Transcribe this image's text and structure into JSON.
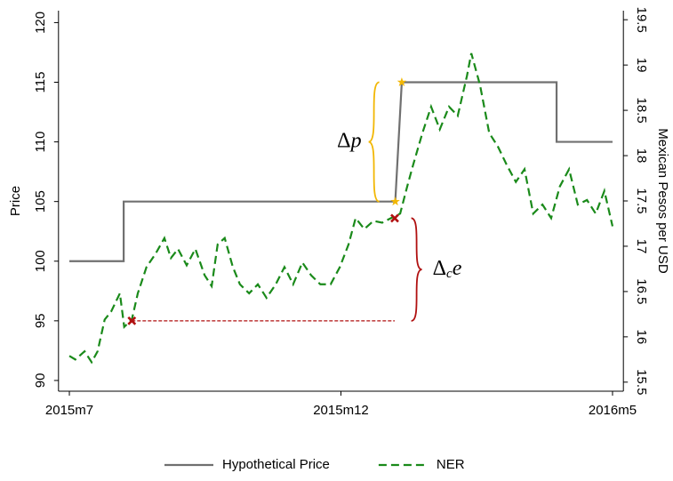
{
  "chart_data": {
    "type": "line",
    "xlim": [
      -0.2,
      10.2
    ],
    "xticks": [
      {
        "value": 0,
        "label": "2015m7"
      },
      {
        "value": 5,
        "label": "2015m12"
      },
      {
        "value": 10,
        "label": "2016m5"
      }
    ],
    "ylim": [
      89.1,
      121
    ],
    "yticks": [
      90,
      95,
      100,
      105,
      110,
      115,
      120
    ],
    "y2lim": [
      15.4,
      19.6
    ],
    "y2ticks": [
      15.5,
      16,
      16.5,
      17,
      17.5,
      18,
      18.5,
      19,
      19.5
    ],
    "ylabel": "Price",
    "y2label": "Mexican Pesos per USD",
    "grid": false,
    "legend": "bottom",
    "series": [
      {
        "name": "Hypothetical Price",
        "color": "#707070",
        "dash": false,
        "x": [
          0,
          1,
          1,
          6,
          6.12,
          8.97,
          8.97,
          10
        ],
        "values": [
          100,
          100,
          105,
          105,
          115,
          115,
          110,
          110
        ]
      },
      {
        "name": "NER",
        "color": "#1a8a1a",
        "dash": true,
        "axis": "y2",
        "x": [
          0,
          0.11,
          0.28,
          0.41,
          0.52,
          0.65,
          0.77,
          0.93,
          1.01,
          1.15,
          1.26,
          1.42,
          1.59,
          1.75,
          1.87,
          2.0,
          2.16,
          2.32,
          2.49,
          2.62,
          2.73,
          2.86,
          3.01,
          3.14,
          3.31,
          3.47,
          3.63,
          3.8,
          3.96,
          4.12,
          4.29,
          4.45,
          4.62,
          4.81,
          4.98,
          5.14,
          5.27,
          5.43,
          5.6,
          5.76,
          5.92,
          6.09,
          6.22,
          6.33,
          6.5,
          6.66,
          6.82,
          6.99,
          7.15,
          7.32,
          7.4,
          7.56,
          7.73,
          7.89,
          8.05,
          8.22,
          8.38,
          8.54,
          8.71,
          8.87,
          9.03,
          9.2,
          9.36,
          9.53,
          9.69,
          9.85,
          10.0
        ],
        "values": [
          15.79,
          15.75,
          15.84,
          15.72,
          15.84,
          16.19,
          16.28,
          16.48,
          16.11,
          16.19,
          16.48,
          16.77,
          16.92,
          17.09,
          16.87,
          16.97,
          16.79,
          16.97,
          16.68,
          16.56,
          17.02,
          17.09,
          16.77,
          16.58,
          16.48,
          16.58,
          16.43,
          16.58,
          16.77,
          16.58,
          16.82,
          16.68,
          16.58,
          16.58,
          16.77,
          17.02,
          17.31,
          17.19,
          17.28,
          17.26,
          17.31,
          17.36,
          17.66,
          17.9,
          18.25,
          18.54,
          18.29,
          18.54,
          18.44,
          18.88,
          19.13,
          18.78,
          18.25,
          18.1,
          17.9,
          17.71,
          17.85,
          17.36,
          17.46,
          17.31,
          17.66,
          17.85,
          17.46,
          17.51,
          17.36,
          17.61,
          17.22
        ]
      }
    ],
    "markers": [
      {
        "x": 6.0,
        "y": 105,
        "color": "#f2b705",
        "shape": "star"
      },
      {
        "x": 6.12,
        "y": 115,
        "color": "#f2b705",
        "shape": "star"
      },
      {
        "x": 1.15,
        "y": 95,
        "color": "#b01010",
        "shape": "x"
      },
      {
        "x": 5.99,
        "y": 103.6,
        "color": "#b01010",
        "shape": "x"
      }
    ],
    "annotations": [
      {
        "base": "Δ",
        "tail": "p",
        "color": "#f2b705",
        "from": 105,
        "to": 115
      },
      {
        "base": "Δ",
        "sub": "c",
        "tail": "e",
        "color": "#b01010",
        "from": 95,
        "to": 103.6
      }
    ]
  }
}
